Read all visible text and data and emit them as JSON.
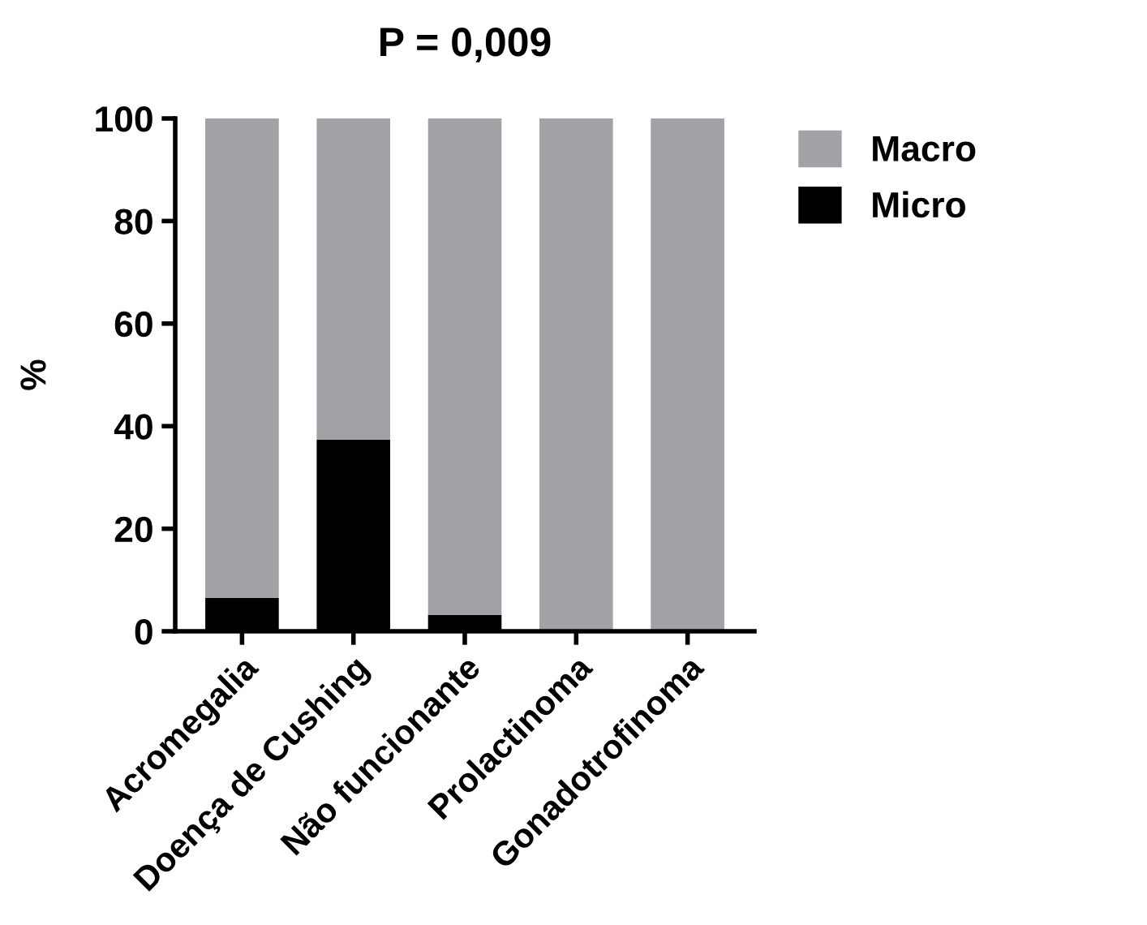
{
  "chart_data": {
    "type": "bar",
    "title": "P = 0,009",
    "ylabel": "%",
    "stacked": true,
    "categories": [
      "Acromegalia",
      "Doença de Cushing",
      "Não funcionante",
      "Prolactinoma",
      "Gonadotrofinoma"
    ],
    "series": [
      {
        "name": "Micro",
        "color": "#000000",
        "values": [
          6.5,
          37.4,
          3.2,
          0,
          0
        ]
      },
      {
        "name": "Macro",
        "color": "#a2a1a6",
        "values": [
          93.5,
          62.6,
          96.8,
          100,
          100
        ]
      }
    ],
    "ylim": [
      0,
      100
    ],
    "yticks": [
      0,
      20,
      40,
      60,
      80,
      100
    ],
    "grid": false,
    "legend": "top right"
  }
}
